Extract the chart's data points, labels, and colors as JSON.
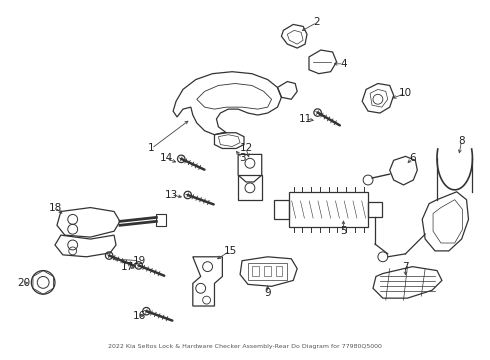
{
  "title": "2022 Kia Seltos Lock & Hardware Checker Assembly-Rear Do Diagram for 77980Q5000",
  "background_color": "#ffffff",
  "fig_width": 4.9,
  "fig_height": 3.6,
  "dpi": 100,
  "line_color": "#333333",
  "label_color": "#222222",
  "font_size": 7.5,
  "arrow_color": "#444444"
}
